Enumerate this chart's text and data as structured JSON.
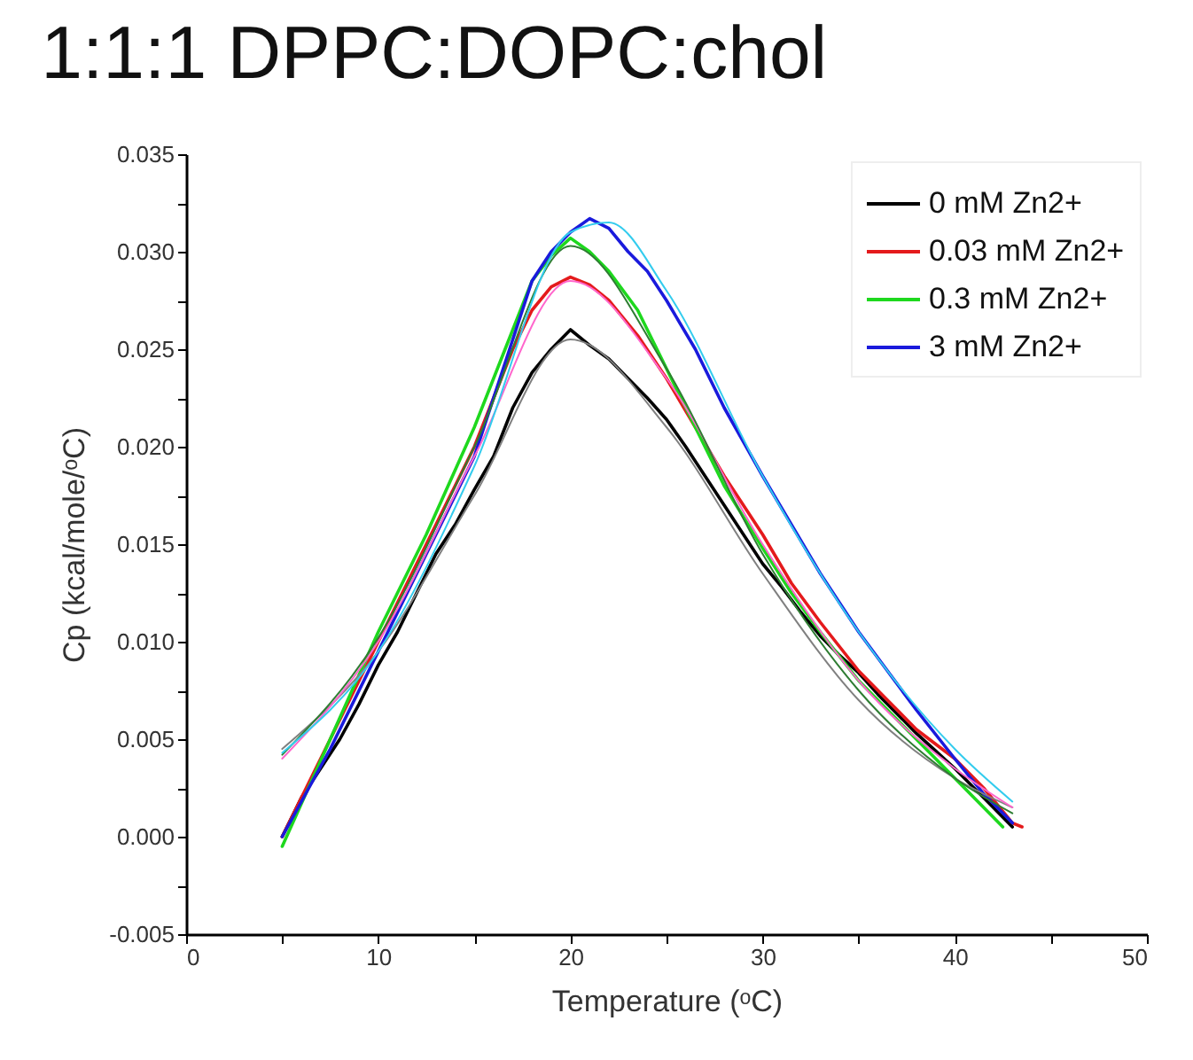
{
  "chart_data": {
    "type": "line",
    "title": "1:1:1 DPPC:DOPC:chol",
    "xlabel": "Temperature (ᵒC)",
    "ylabel": "Cp (kcal/mole/ᵒC)",
    "xlim": [
      0,
      50
    ],
    "xticks": [
      0,
      {
        "value": 5,
        "label": null
      },
      10,
      {
        "value": 15,
        "label": null
      },
      20,
      {
        "value": 25,
        "label": null
      },
      30,
      {
        "value": 35,
        "label": null
      },
      40,
      {
        "value": 45,
        "label": null
      },
      50
    ],
    "ylim": [
      -0.005,
      0.035
    ],
    "yticks": [
      {
        "value": -0.005,
        "label": "-0.005"
      },
      {
        "value": -0.0025,
        "label": null
      },
      {
        "value": 0,
        "label": "0.000"
      },
      {
        "value": 0.0025,
        "label": null
      },
      {
        "value": 0.005,
        "label": "0.005"
      },
      {
        "value": 0.0075,
        "label": null
      },
      {
        "value": 0.01,
        "label": "0.010"
      },
      {
        "value": 0.0125,
        "label": null
      },
      {
        "value": 0.015,
        "label": "0.015"
      },
      {
        "value": 0.0175,
        "label": null
      },
      {
        "value": 0.02,
        "label": "0.020"
      },
      {
        "value": 0.0225,
        "label": null
      },
      {
        "value": 0.025,
        "label": "0.025"
      },
      {
        "value": 0.0275,
        "label": null
      },
      {
        "value": 0.03,
        "label": "0.030"
      },
      {
        "value": 0.0325,
        "label": null
      },
      {
        "value": 0.035,
        "label": "0.035"
      }
    ],
    "legend": "top right",
    "line_style": "solid",
    "marker": "none",
    "series": [
      {
        "name": "0 mM Zn2+",
        "color": "#000000",
        "x": [
          5,
          6,
          7,
          8,
          9,
          10,
          11,
          12,
          13,
          14,
          15,
          16,
          17,
          18,
          19,
          20,
          21,
          22,
          23,
          24,
          25,
          26,
          27,
          28,
          29,
          30,
          31,
          32,
          33,
          34,
          35,
          36,
          37,
          38,
          39,
          40,
          41,
          42,
          43
        ],
        "values": [
          0.0,
          0.002,
          0.0035,
          0.005,
          0.0068,
          0.0088,
          0.0105,
          0.0125,
          0.0145,
          0.016,
          0.0178,
          0.0195,
          0.022,
          0.0238,
          0.025,
          0.026,
          0.0252,
          0.0245,
          0.0235,
          0.0225,
          0.0214,
          0.02,
          0.0185,
          0.017,
          0.0155,
          0.014,
          0.0128,
          0.0115,
          0.0103,
          0.0093,
          0.0084,
          0.0073,
          0.0063,
          0.0053,
          0.0044,
          0.0035,
          0.0025,
          0.0015,
          0.0005
        ]
      },
      {
        "name": "0.03 mM Zn2+",
        "color": "#e41a1c",
        "x": [
          5,
          7.5,
          10,
          12.5,
          15,
          17,
          18,
          19,
          20,
          21,
          22,
          23.5,
          25,
          26.5,
          28,
          30,
          31.5,
          33,
          35,
          36.5,
          38,
          40,
          41.5,
          43,
          43.5
        ],
        "values": [
          0.0,
          0.005,
          0.01,
          0.015,
          0.02,
          0.025,
          0.027,
          0.0282,
          0.0287,
          0.0283,
          0.0275,
          0.0257,
          0.0235,
          0.021,
          0.0185,
          0.0155,
          0.013,
          0.011,
          0.0085,
          0.007,
          0.0055,
          0.004,
          0.0025,
          0.0007,
          0.0005
        ]
      },
      {
        "name": "0.3 mM Zn2+",
        "color": "#1ed81e",
        "x": [
          5,
          7.5,
          10,
          12.5,
          15,
          17,
          18,
          19,
          20,
          21,
          22,
          23.5,
          25,
          26.5,
          28,
          30,
          31.5,
          33,
          35,
          36.5,
          38,
          40,
          41.5,
          42.5
        ],
        "values": [
          -0.0005,
          0.005,
          0.0105,
          0.0155,
          0.021,
          0.026,
          0.0285,
          0.0298,
          0.0307,
          0.03,
          0.029,
          0.027,
          0.024,
          0.021,
          0.018,
          0.0148,
          0.0125,
          0.0105,
          0.008,
          0.0065,
          0.005,
          0.003,
          0.0015,
          0.0005
        ]
      },
      {
        "name": "3 mM Zn2+",
        "color": "#1a1adc",
        "x": [
          5,
          7.5,
          10,
          12.5,
          15,
          17,
          18,
          19,
          20,
          21,
          22,
          23,
          24,
          25,
          26.5,
          28,
          30,
          31.5,
          33,
          35,
          36.5,
          38,
          40,
          41.5,
          43
        ],
        "values": [
          0.0,
          0.0045,
          0.0095,
          0.0145,
          0.0195,
          0.0255,
          0.0285,
          0.03,
          0.031,
          0.0317,
          0.0312,
          0.03,
          0.029,
          0.0275,
          0.025,
          0.022,
          0.0185,
          0.016,
          0.0135,
          0.0105,
          0.0085,
          0.0065,
          0.004,
          0.0022,
          0.0007
        ]
      },
      {
        "color": "#808080",
        "x": [
          5,
          10,
          15,
          20,
          25,
          30,
          35,
          40,
          43
        ],
        "values": [
          0.0045,
          0.0095,
          0.0175,
          0.0255,
          0.021,
          0.0135,
          0.007,
          0.003,
          0.0015
        ]
      },
      {
        "color": "#ff66cc",
        "x": [
          5,
          10,
          15,
          20,
          25,
          30,
          35,
          40,
          43
        ],
        "values": [
          0.004,
          0.01,
          0.0195,
          0.0285,
          0.0235,
          0.015,
          0.008,
          0.0035,
          0.0015
        ]
      },
      {
        "color": "#2e7d32",
        "x": [
          5,
          10,
          15,
          20,
          25,
          30,
          35,
          40,
          43
        ],
        "values": [
          0.0042,
          0.0102,
          0.02,
          0.0303,
          0.024,
          0.0145,
          0.0075,
          0.003,
          0.0012
        ]
      },
      {
        "color": "#33ccee",
        "x": [
          5,
          10,
          15,
          20,
          22,
          25,
          30,
          35,
          40,
          43
        ],
        "values": [
          0.0043,
          0.0095,
          0.019,
          0.031,
          0.0315,
          0.028,
          0.0185,
          0.0105,
          0.0045,
          0.0018
        ]
      }
    ]
  }
}
